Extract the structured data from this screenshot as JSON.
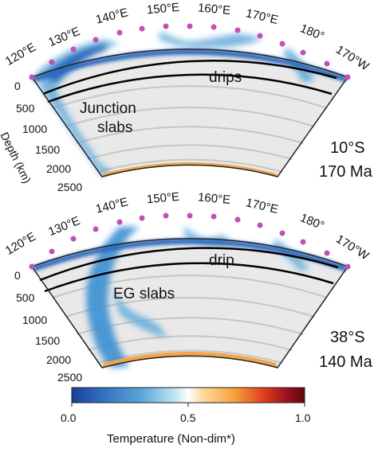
{
  "panels": [
    {
      "id": "top",
      "longitude_labels": [
        "120°E",
        "130°E",
        "140°E",
        "150°E",
        "160°E",
        "170°E",
        "180°",
        "170°W"
      ],
      "depth_ticks": [
        "0",
        "500",
        "1000",
        "1500",
        "2000",
        "2500"
      ],
      "depth_axis_label": "Depth (km)",
      "annotations": [
        "drips",
        "Junction",
        "slabs"
      ],
      "latitude": "10°S",
      "age": "170 Ma"
    },
    {
      "id": "bottom",
      "longitude_labels": [
        "120°E",
        "130°E",
        "140°E",
        "150°E",
        "160°E",
        "170°E",
        "180°",
        "170°W"
      ],
      "depth_ticks": [
        "0",
        "500",
        "1000",
        "1500",
        "2000",
        "2500"
      ],
      "annotations": [
        "drip",
        "EG slabs"
      ],
      "latitude": "38°S",
      "age": "140 Ma"
    }
  ],
  "colorbar": {
    "ticks": [
      "0.0",
      "0.5",
      "1.0"
    ],
    "title": "Temperature (Non-dim*)",
    "colors": [
      "#1a3f9a",
      "#2f6bbd",
      "#5aa6d8",
      "#bfe3f2",
      "#ffffff",
      "#ffd9a0",
      "#f5a03a",
      "#e0421e",
      "#a11020",
      "#5a0a0a"
    ]
  },
  "colors": {
    "mantle_background": "#e9e9e9",
    "cold_slab": "#3c8fd0",
    "hot_boundary": "#f3a54a",
    "plate_marker": "#c24fb8",
    "grid_line": "#c6c6c6"
  }
}
